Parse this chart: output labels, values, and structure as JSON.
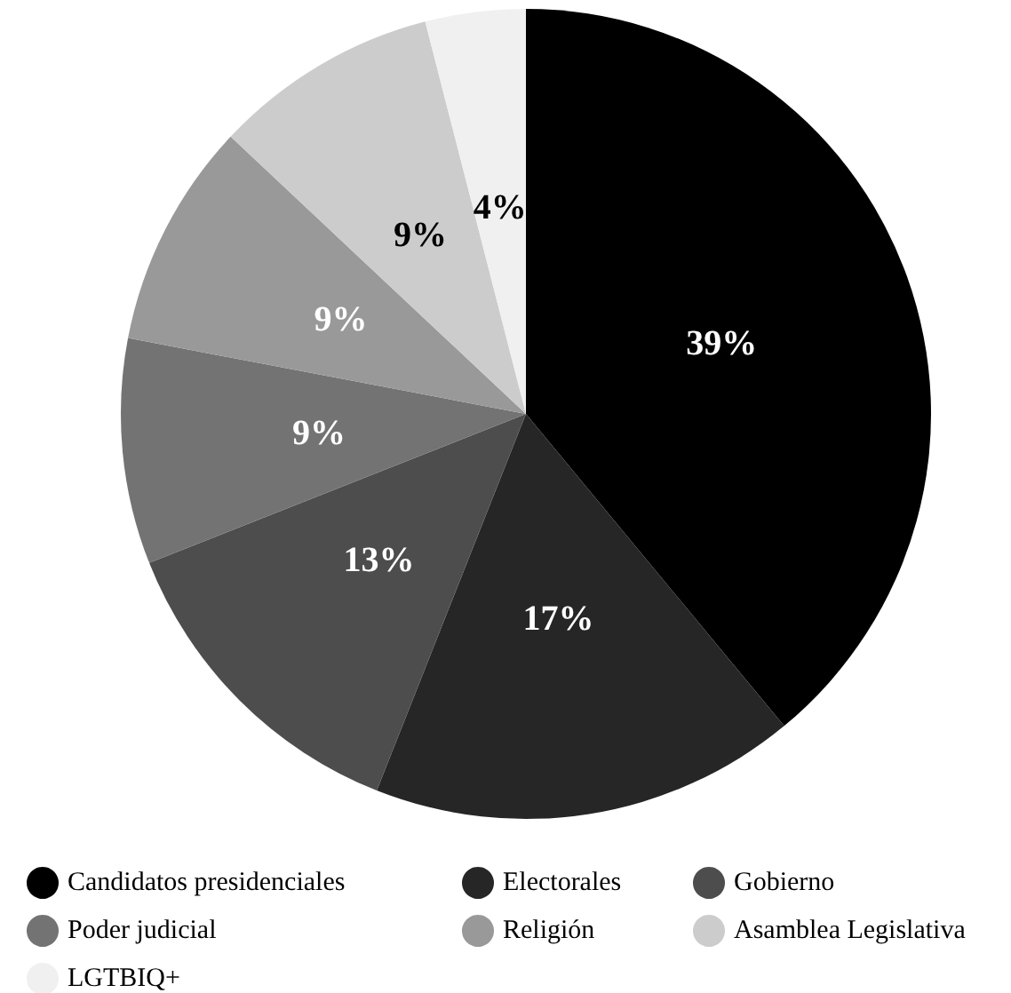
{
  "chart_data": {
    "type": "pie",
    "categories": [
      "Candidatos presidenciales",
      "Electorales",
      "Gobierno",
      "Poder judicial",
      "Religión",
      "Asamblea Legislativa",
      "LGTBIQ+"
    ],
    "values": [
      39,
      17,
      13,
      9,
      9,
      9,
      4
    ],
    "colors": [
      "#000000",
      "#262626",
      "#4d4d4d",
      "#737373",
      "#999999",
      "#cccccc",
      "#f0f0f0"
    ],
    "value_labels": [
      "39%",
      "17%",
      "13%",
      "9%",
      "9%",
      "9%",
      "4%"
    ],
    "legend": "bottom"
  }
}
